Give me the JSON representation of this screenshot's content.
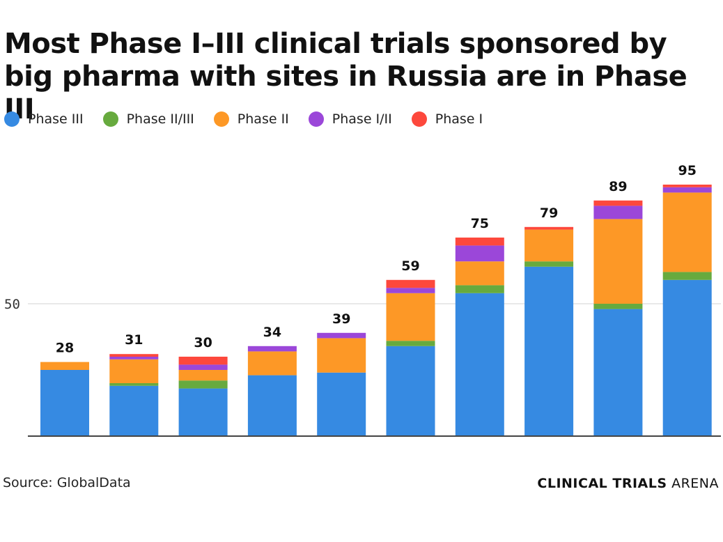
{
  "chart_data": {
    "type": "bar",
    "stacked": true,
    "title": "Most Phase I–III clinical trials sponsored by big pharma with sites in Russia are in Phase III",
    "categories": [
      "",
      "",
      "",
      "",
      "",
      "",
      "",
      "",
      "",
      ""
    ],
    "series": [
      {
        "name": "Phase III",
        "color": "#368ae2",
        "values": [
          25,
          19,
          18,
          23,
          24,
          34,
          54,
          64,
          48,
          59
        ]
      },
      {
        "name": "Phase II/III",
        "color": "#67aa3e",
        "values": [
          0,
          1,
          3,
          0,
          0,
          2,
          3,
          2,
          2,
          3
        ]
      },
      {
        "name": "Phase II",
        "color": "#fd9826",
        "values": [
          3,
          9,
          4,
          9,
          13,
          18,
          9,
          12,
          32,
          30
        ]
      },
      {
        "name": "Phase I/II",
        "color": "#9b47d9",
        "values": [
          0,
          1,
          2,
          2,
          2,
          2,
          6,
          0,
          5,
          2
        ]
      },
      {
        "name": "Phase I",
        "color": "#fd483c",
        "values": [
          0,
          1,
          3,
          0,
          0,
          3,
          3,
          1,
          2,
          1
        ]
      }
    ],
    "totals": [
      "28",
      "31",
      "30",
      "34",
      "39",
      "59",
      "75",
      "79",
      "89",
      "95"
    ],
    "yticks": [
      "50"
    ],
    "ylim": [
      0,
      100
    ],
    "grid": true,
    "legend": "top-left"
  },
  "footer": {
    "source": "Source: GlobalData",
    "brand_bold": "CLINICAL TRIALS",
    "brand_light": " ARENA"
  }
}
